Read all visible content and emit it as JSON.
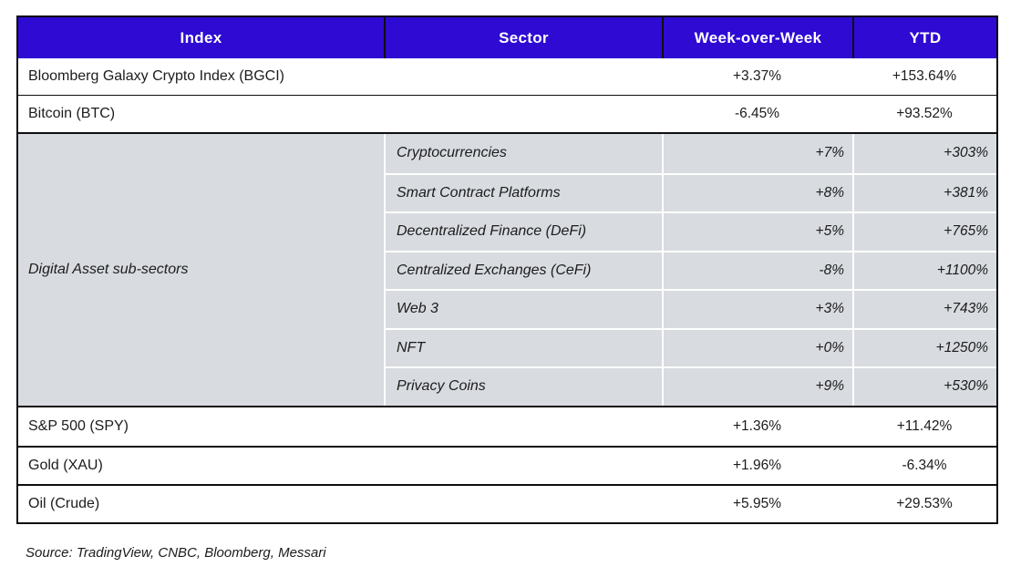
{
  "headers": {
    "index": "Index",
    "sector": "Sector",
    "wow": "Week-over-Week",
    "ytd": "YTD"
  },
  "colors": {
    "header_bg": "#2e0ad3",
    "header_text": "#ffffff",
    "subsection_bg": "#d8dbe0",
    "border": "#0e0e0e",
    "text": "#1c1c1c"
  },
  "top_rows": [
    {
      "label": "Bloomberg Galaxy Crypto Index (BGCI)",
      "wow": "+3.37%",
      "ytd": "+153.64%"
    },
    {
      "label": "Bitcoin (BTC)",
      "wow": "-6.45%",
      "ytd": "+93.52%"
    }
  ],
  "subsection": {
    "label": "Digital Asset sub-sectors",
    "rows": [
      {
        "sector": "Cryptocurrencies",
        "wow": "+7%",
        "ytd": "+303%"
      },
      {
        "sector": "Smart Contract Platforms",
        "wow": "+8%",
        "ytd": "+381%"
      },
      {
        "sector": "Decentralized Finance (DeFi)",
        "wow": "+5%",
        "ytd": "+765%"
      },
      {
        "sector": "Centralized Exchanges (CeFi)",
        "wow": "-8%",
        "ytd": "+1100%"
      },
      {
        "sector": "Web 3",
        "wow": "+3%",
        "ytd": "+743%"
      },
      {
        "sector": "NFT",
        "wow": "+0%",
        "ytd": "+1250%"
      },
      {
        "sector": "Privacy Coins",
        "wow": "+9%",
        "ytd": "+530%"
      }
    ]
  },
  "bottom_rows": [
    {
      "label": "S&P 500 (SPY)",
      "wow": "+1.36%",
      "ytd": "+11.42%"
    },
    {
      "label": "Gold (XAU)",
      "wow": "+1.96%",
      "ytd": "-6.34%"
    },
    {
      "label": "Oil (Crude)",
      "wow": "+5.95%",
      "ytd": "+29.53%"
    }
  ],
  "source": "Source: TradingView, CNBC, Bloomberg, Messari",
  "chart_data": {
    "type": "table",
    "title": "Weekly market performance: crypto indexes, digital asset sub-sectors and traditional assets",
    "columns": [
      "Index",
      "Sector",
      "Week-over-Week",
      "YTD"
    ],
    "rows": [
      [
        "Bloomberg Galaxy Crypto Index (BGCI)",
        "",
        "+3.37%",
        "+153.64%"
      ],
      [
        "Bitcoin (BTC)",
        "",
        "-6.45%",
        "+93.52%"
      ],
      [
        "Digital Asset sub-sectors",
        "Cryptocurrencies",
        "+7%",
        "+303%"
      ],
      [
        "Digital Asset sub-sectors",
        "Smart Contract Platforms",
        "+8%",
        "+381%"
      ],
      [
        "Digital Asset sub-sectors",
        "Decentralized Finance (DeFi)",
        "+5%",
        "+765%"
      ],
      [
        "Digital Asset sub-sectors",
        "Centralized Exchanges (CeFi)",
        "-8%",
        "+1100%"
      ],
      [
        "Digital Asset sub-sectors",
        "Web 3",
        "+3%",
        "+743%"
      ],
      [
        "Digital Asset sub-sectors",
        "NFT",
        "+0%",
        "+1250%"
      ],
      [
        "Digital Asset sub-sectors",
        "Privacy Coins",
        "+9%",
        "+530%"
      ],
      [
        "S&P 500 (SPY)",
        "",
        "+1.36%",
        "+11.42%"
      ],
      [
        "Gold (XAU)",
        "",
        "+1.96%",
        "-6.34%"
      ],
      [
        "Oil (Crude)",
        "",
        "+5.95%",
        "+29.53%"
      ]
    ],
    "footnote": "Source: TradingView, CNBC, Bloomberg, Messari"
  }
}
